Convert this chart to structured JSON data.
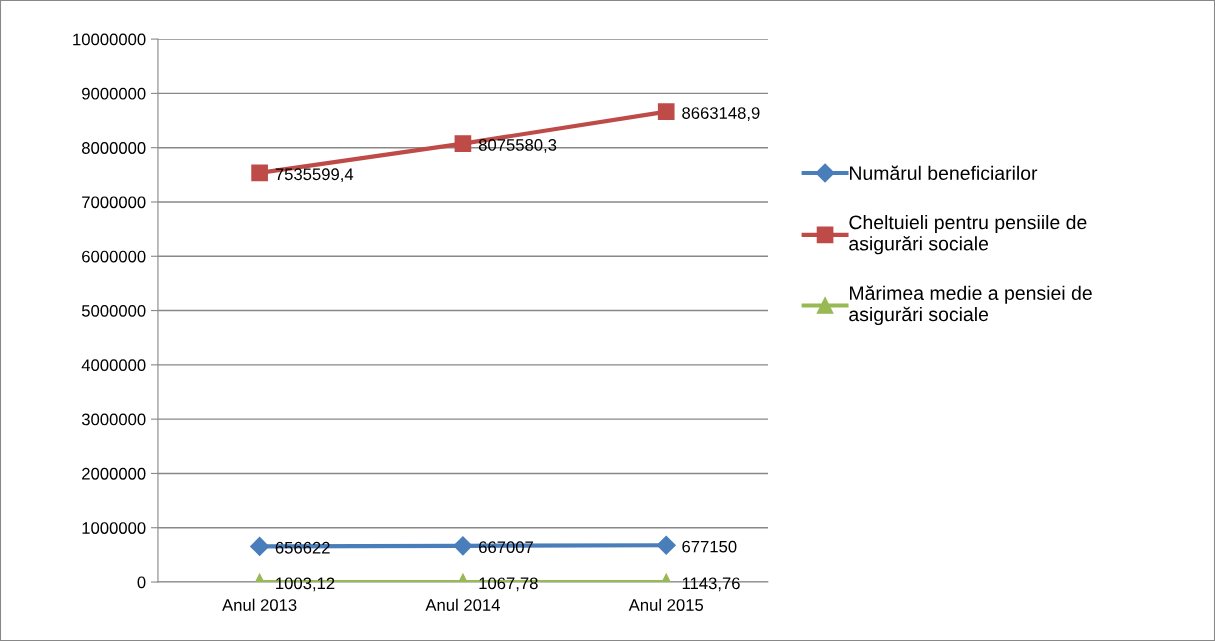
{
  "chart_data": {
    "type": "line",
    "categories": [
      "Anul 2013",
      "Anul 2014",
      "Anul 2015"
    ],
    "series": [
      {
        "name": "Numărul beneficiarilor",
        "color": "#4a7ebb",
        "marker": "diamond",
        "values": [
          656622,
          667007,
          677150
        ],
        "value_labels": [
          "656622",
          "667007",
          "677150"
        ]
      },
      {
        "name": "Cheltuieli pentru pensiile de\nasigurări sociale",
        "color": "#be4b48",
        "marker": "square",
        "values": [
          7535599.4,
          8075580.3,
          8663148.9
        ],
        "value_labels": [
          "7535599,4",
          "8075580,3",
          "8663148,9"
        ]
      },
      {
        "name": "Mărimea medie a pensiei de\nasigurări sociale",
        "color": "#98b954",
        "marker": "triangle",
        "values": [
          1003.12,
          1067.78,
          1143.76
        ],
        "value_labels": [
          "1003,12",
          "1067,78",
          "1143,76"
        ]
      }
    ],
    "ylim": [
      0,
      10000000
    ],
    "yticks": [
      0,
      1000000,
      2000000,
      3000000,
      4000000,
      5000000,
      6000000,
      7000000,
      8000000,
      9000000,
      10000000
    ],
    "grid": "y",
    "legend": "right",
    "line_style": "solid"
  }
}
